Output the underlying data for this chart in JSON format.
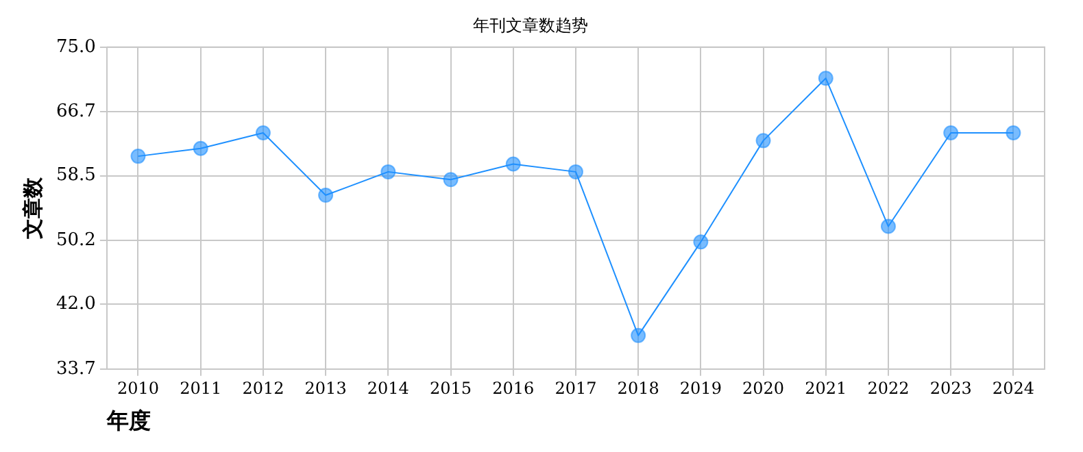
{
  "chart_data": {
    "type": "line",
    "title": "年刊文章数趋势",
    "xlabel": "年度",
    "ylabel": "文章数",
    "categories": [
      "2010",
      "2011",
      "2012",
      "2013",
      "2014",
      "2015",
      "2016",
      "2017",
      "2018",
      "2019",
      "2020",
      "2021",
      "2022",
      "2023",
      "2024"
    ],
    "series": [
      {
        "color": "#1e90ff",
        "values": [
          61,
          62,
          64,
          56,
          59,
          58,
          60,
          59,
          38,
          50,
          63,
          71,
          52,
          64,
          64
        ]
      }
    ],
    "ylim": [
      33.7,
      75
    ],
    "yticks": [
      {
        "value": 33.7,
        "label": "33.7"
      },
      {
        "value": 42,
        "label": "42.0"
      },
      {
        "value": 50.2,
        "label": "50.2"
      },
      {
        "value": 58.5,
        "label": "58.5"
      },
      {
        "value": 66.7,
        "label": "66.7"
      },
      {
        "value": 75,
        "label": "75.0"
      }
    ],
    "grid": true,
    "marker": "circle",
    "line_style": "solid",
    "legend": false
  }
}
